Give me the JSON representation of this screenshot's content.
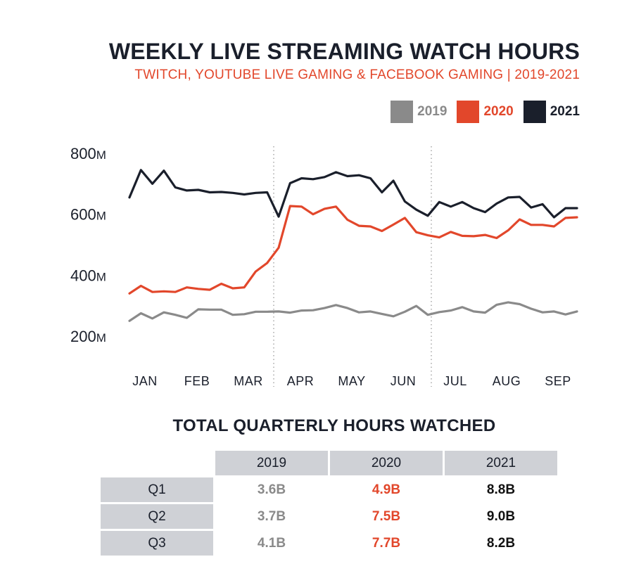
{
  "title": "WEEKLY LIVE STREAMING WATCH HOURS",
  "subtitle": "TWITCH, YOUTUBE LIVE GAMING & FACEBOOK GAMING  |  2019-2021",
  "colors": {
    "y2019": "#8a8a8a",
    "y2020": "#e2472b",
    "y2021": "#1a1f2b"
  },
  "chart_data": {
    "type": "line",
    "title": "WEEKLY LIVE STREAMING WATCH HOURS",
    "legend_position": "top-right",
    "grid": false,
    "ylim": [
      200,
      800
    ],
    "yticks": [
      {
        "value": 200,
        "num": "200",
        "unit": "M"
      },
      {
        "value": 400,
        "num": "400",
        "unit": "M"
      },
      {
        "value": 600,
        "num": "600",
        "unit": "M"
      },
      {
        "value": 800,
        "num": "800",
        "unit": "M"
      }
    ],
    "x_tick_labels": [
      "JAN",
      "FEB",
      "MAR",
      "APR",
      "MAY",
      "JUN",
      "JUL",
      "AUG",
      "SEP"
    ],
    "quarter_dividers": [
      "MAR/APR",
      "JUN/JUL"
    ],
    "series": [
      {
        "name": "2019",
        "color": "#8a8a8a",
        "values": [
          250,
          275,
          258,
          278,
          270,
          260,
          288,
          287,
          287,
          270,
          272,
          280,
          280,
          281,
          277,
          284,
          285,
          292,
          302,
          292,
          278,
          281,
          273,
          265,
          280,
          299,
          270,
          279,
          284,
          295,
          281,
          277,
          303,
          311,
          305,
          290,
          278,
          281,
          271,
          281
        ]
      },
      {
        "name": "2020",
        "color": "#e2472b",
        "values": [
          340,
          365,
          345,
          347,
          345,
          360,
          355,
          352,
          372,
          357,
          360,
          412,
          440,
          490,
          627,
          625,
          600,
          618,
          625,
          582,
          562,
          560,
          545,
          566,
          588,
          541,
          531,
          524,
          542,
          529,
          528,
          532,
          522,
          547,
          583,
          565,
          565,
          560,
          588,
          590
        ]
      },
      {
        "name": "2021",
        "color": "#1a1f2b",
        "values": [
          655,
          745,
          700,
          743,
          688,
          678,
          680,
          672,
          673,
          670,
          665,
          670,
          672,
          592,
          702,
          718,
          715,
          722,
          738,
          725,
          728,
          718,
          672,
          710,
          642,
          615,
          595,
          640,
          625,
          640,
          620,
          607,
          635,
          655,
          657,
          622,
          633,
          590,
          620,
          620
        ]
      }
    ]
  },
  "legend": [
    {
      "label": "2019"
    },
    {
      "label": "2020"
    },
    {
      "label": "2021"
    }
  ],
  "table": {
    "title": "TOTAL QUARTERLY HOURS WATCHED",
    "columns": [
      "2019",
      "2020",
      "2021"
    ],
    "rows": [
      {
        "label": "Q1",
        "values": [
          "3.6B",
          "4.9B",
          "8.8B"
        ]
      },
      {
        "label": "Q2",
        "values": [
          "3.7B",
          "7.5B",
          "9.0B"
        ]
      },
      {
        "label": "Q3",
        "values": [
          "4.1B",
          "7.7B",
          "8.2B"
        ]
      }
    ]
  }
}
